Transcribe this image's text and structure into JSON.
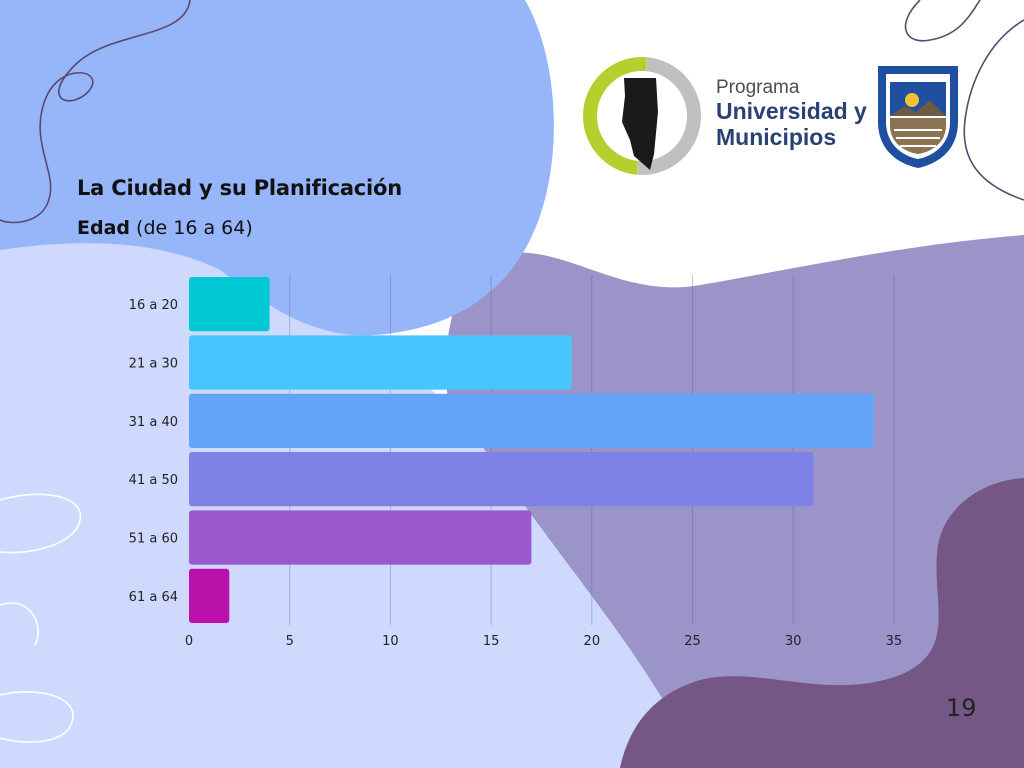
{
  "slide": {
    "title": "La Ciudad y su Planificación",
    "subtitle_bold": "Edad",
    "subtitle_rest": " (de 16 a 64)",
    "page_number": "19"
  },
  "logo": {
    "line1": "Programa",
    "line2": "Universidad y",
    "line3": "Municipios"
  },
  "colors": {
    "blob_blue": "#97b5f9",
    "blob_light": "#cfd9fd",
    "blob_purple": "#9b94c9",
    "blob_dark": "#745784",
    "logo_green": "#b6cf2f",
    "logo_gray": "#c0c0c0",
    "shield_blue": "#1f4fa0"
  },
  "chart_data": {
    "type": "bar",
    "orientation": "horizontal",
    "categories": [
      "16 a 20",
      "21 a 30",
      "31 a 40",
      "41 a 50",
      "51 a 60",
      "61 a 64"
    ],
    "values": [
      4,
      19,
      34,
      31,
      17,
      2
    ],
    "bar_colors": [
      "#00c9d6",
      "#48c5fd",
      "#62a5f8",
      "#7e82e6",
      "#9a59cd",
      "#b911a9"
    ],
    "xticks": [
      0,
      5,
      10,
      15,
      20,
      25,
      30,
      35
    ],
    "xlim": [
      0,
      35.4
    ],
    "grid": true,
    "title": "",
    "xlabel": "",
    "ylabel": ""
  }
}
